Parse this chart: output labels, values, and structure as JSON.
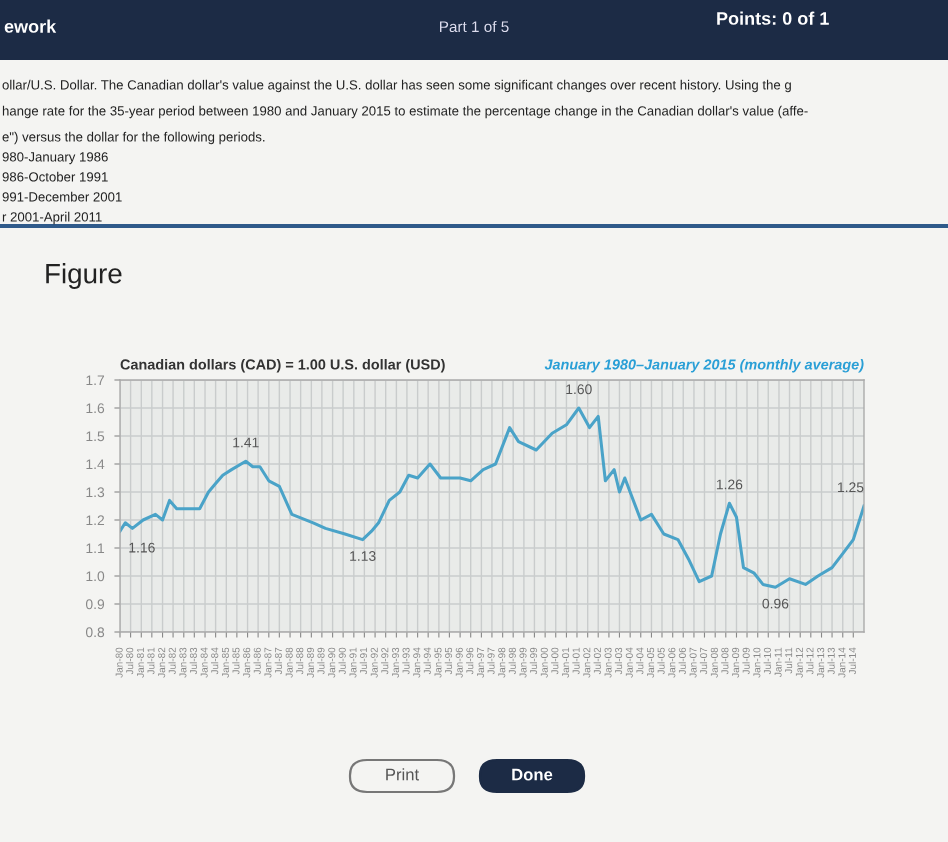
{
  "chart_data": {
    "type": "line",
    "title": "Figure",
    "ylabel": "Canadian dollars (CAD) = 1.00 U.S. dollar (USD)",
    "subtitle": "January 1980–January 2015 (monthly average)",
    "x": [
      "1980-01",
      "1980-04",
      "1980-08",
      "1981-02",
      "1981-09",
      "1982-01",
      "1982-05",
      "1982-09",
      "1983-10",
      "1984-03",
      "1984-07",
      "1984-11",
      "1985-04",
      "1985-12",
      "1986-04",
      "1986-08",
      "1987-01",
      "1987-07",
      "1988-02",
      "1989-02",
      "1989-09",
      "1990-08",
      "1991-06",
      "1991-11",
      "1992-03",
      "1992-09",
      "1993-03",
      "1993-08",
      "1994-01",
      "1994-08",
      "1995-02",
      "1996-01",
      "1996-07",
      "1997-02",
      "1997-09",
      "1998-05",
      "1998-10",
      "1999-08",
      "2000-05",
      "2001-01",
      "2001-08",
      "2002-02",
      "2002-07",
      "2002-11",
      "2003-04",
      "2003-07",
      "2003-10",
      "2004-07",
      "2005-01",
      "2005-08",
      "2006-04",
      "2006-10",
      "2007-04",
      "2007-11",
      "2008-04",
      "2008-09",
      "2009-01",
      "2009-05",
      "2009-11",
      "2010-04",
      "2010-11",
      "2011-07",
      "2012-04",
      "2012-11",
      "2013-07",
      "2014-01",
      "2014-07",
      "2015-01"
    ],
    "series": [
      {
        "color": "#4aa3c8",
        "values": [
          1.16,
          1.19,
          1.17,
          1.2,
          1.22,
          1.2,
          1.27,
          1.24,
          1.24,
          1.3,
          1.33,
          1.36,
          1.38,
          1.41,
          1.39,
          1.39,
          1.34,
          1.32,
          1.22,
          1.19,
          1.17,
          1.15,
          1.13,
          1.16,
          1.19,
          1.27,
          1.3,
          1.36,
          1.35,
          1.4,
          1.35,
          1.35,
          1.34,
          1.38,
          1.4,
          1.53,
          1.48,
          1.45,
          1.51,
          1.54,
          1.6,
          1.53,
          1.57,
          1.34,
          1.38,
          1.3,
          1.35,
          1.2,
          1.22,
          1.15,
          1.13,
          1.06,
          0.98,
          1.0,
          1.15,
          1.26,
          1.21,
          1.03,
          1.01,
          0.97,
          0.96,
          0.99,
          0.97,
          1.0,
          1.03,
          1.08,
          1.13,
          1.25
        ]
      }
    ],
    "xlim": [
      "1980-01",
      "2015-01"
    ],
    "xticks": [
      {
        "value": "1980-01",
        "label": "Jan-80"
      },
      {
        "value": "1980-07",
        "label": "Jul-80"
      },
      {
        "value": "1981-01",
        "label": "Jan-81"
      },
      {
        "value": "1981-07",
        "label": "Jul-81"
      },
      {
        "value": "1982-01",
        "label": "Jan-82"
      },
      {
        "value": "1982-07",
        "label": "Jul-82"
      },
      {
        "value": "1983-01",
        "label": "Jan-83"
      },
      {
        "value": "1983-07",
        "label": "Jul-83"
      },
      {
        "value": "1984-01",
        "label": "Jan-84"
      },
      {
        "value": "1984-07",
        "label": "Jul-84"
      },
      {
        "value": "1985-01",
        "label": "Jan-85"
      },
      {
        "value": "1985-07",
        "label": "Jul-85"
      },
      {
        "value": "1986-01",
        "label": "Jan-86"
      },
      {
        "value": "1986-07",
        "label": "Jul-86"
      },
      {
        "value": "1987-01",
        "label": "Jan-87"
      },
      {
        "value": "1987-07",
        "label": "Jul-87"
      },
      {
        "value": "1988-01",
        "label": "Jan-88"
      },
      {
        "value": "1988-07",
        "label": "Jul-88"
      },
      {
        "value": "1989-01",
        "label": "Jan-89"
      },
      {
        "value": "1989-07",
        "label": "Jul-89"
      },
      {
        "value": "1990-01",
        "label": "Jan-90"
      },
      {
        "value": "1990-07",
        "label": "Jul-90"
      },
      {
        "value": "1991-01",
        "label": "Jan-91"
      },
      {
        "value": "1991-07",
        "label": "Jul-91"
      },
      {
        "value": "1992-01",
        "label": "Jan-92"
      },
      {
        "value": "1992-07",
        "label": "Jul-92"
      },
      {
        "value": "1993-01",
        "label": "Jan-93"
      },
      {
        "value": "1993-07",
        "label": "Jul-93"
      },
      {
        "value": "1994-01",
        "label": "Jan-94"
      },
      {
        "value": "1994-07",
        "label": "Jul-94"
      },
      {
        "value": "1995-01",
        "label": "Jan-95"
      },
      {
        "value": "1995-07",
        "label": "Jul-95"
      },
      {
        "value": "1996-01",
        "label": "Jan-96"
      },
      {
        "value": "1996-07",
        "label": "Jul-96"
      },
      {
        "value": "1997-01",
        "label": "Jan-97"
      },
      {
        "value": "1997-07",
        "label": "Jul-97"
      },
      {
        "value": "1998-01",
        "label": "Jan-98"
      },
      {
        "value": "1998-07",
        "label": "Jul-98"
      },
      {
        "value": "1999-01",
        "label": "Jan-99"
      },
      {
        "value": "1999-07",
        "label": "Jul-99"
      },
      {
        "value": "2000-01",
        "label": "Jan-00"
      },
      {
        "value": "2000-07",
        "label": "Jul-00"
      },
      {
        "value": "2001-01",
        "label": "Jan-01"
      },
      {
        "value": "2001-07",
        "label": "Jul-01"
      },
      {
        "value": "2002-01",
        "label": "Jan-02"
      },
      {
        "value": "2002-07",
        "label": "Jul-02"
      },
      {
        "value": "2003-01",
        "label": "Jan-03"
      },
      {
        "value": "2003-07",
        "label": "Jul-03"
      },
      {
        "value": "2004-01",
        "label": "Jan-04"
      },
      {
        "value": "2004-07",
        "label": "Jul-04"
      },
      {
        "value": "2005-01",
        "label": "Jan-05"
      },
      {
        "value": "2005-07",
        "label": "Jul-05"
      },
      {
        "value": "2006-01",
        "label": "Jan-06"
      },
      {
        "value": "2006-07",
        "label": "Jul-06"
      },
      {
        "value": "2007-01",
        "label": "Jan-07"
      },
      {
        "value": "2007-07",
        "label": "Jul-07"
      },
      {
        "value": "2008-01",
        "label": "Jan-08"
      },
      {
        "value": "2008-07",
        "label": "Jul-08"
      },
      {
        "value": "2009-01",
        "label": "Jan-09"
      },
      {
        "value": "2009-07",
        "label": "Jul-09"
      },
      {
        "value": "2010-01",
        "label": "Jan-10"
      },
      {
        "value": "2010-07",
        "label": "Jul-10"
      },
      {
        "value": "2011-01",
        "label": "Jan-11"
      },
      {
        "value": "2011-07",
        "label": "Jul-11"
      },
      {
        "value": "2012-01",
        "label": "Jan-12"
      },
      {
        "value": "2012-07",
        "label": "Jul-12"
      },
      {
        "value": "2013-01",
        "label": "Jan-13"
      },
      {
        "value": "2013-07",
        "label": "Jul-13"
      },
      {
        "value": "2014-01",
        "label": "Jan-14"
      },
      {
        "value": "2014-07",
        "label": "Jul-14"
      }
    ],
    "ylim": [
      0.8,
      1.7
    ],
    "yticks": [
      0.8,
      0.9,
      {
        "value": 1.0,
        "label": "1.0"
      },
      1.1,
      1.2,
      1.3,
      1.4,
      1.5,
      1.6,
      1.7
    ],
    "grid": true,
    "annotations": [
      "ework",
      "Part 1 of 5",
      "Points: 0 of 1",
      "ollar/U.S. Dollar. The Canadian dollar's value against the U.S. dollar has seen some significant changes over recent history. Using the g",
      "hange rate for the 35-year period between 1980 and January 2015 to estimate the percentage change in the Canadian dollar's value (affe-",
      "e\") versus the dollar for the following periods.",
      "980-January 1986",
      "986-October 1991",
      "991-December 2001",
      "r 2001-April 2011",
      "Print",
      "Done",
      {
        "text": "1.16",
        "x": "1980-01",
        "y": 1.16
      },
      {
        "text": "1.41",
        "x": "1985-12",
        "y": 1.41
      },
      {
        "text": "1.13",
        "x": "1991-06",
        "y": 1.13
      },
      {
        "text": "1.60",
        "x": "2001-08",
        "y": 1.6
      },
      {
        "text": "1.26",
        "x": "2008-09",
        "y": 1.26
      },
      {
        "text": "0.96",
        "x": "2010-11",
        "y": 0.96
      },
      {
        "text": "1.25",
        "x": "2015-01",
        "y": 1.25
      }
    ]
  }
}
